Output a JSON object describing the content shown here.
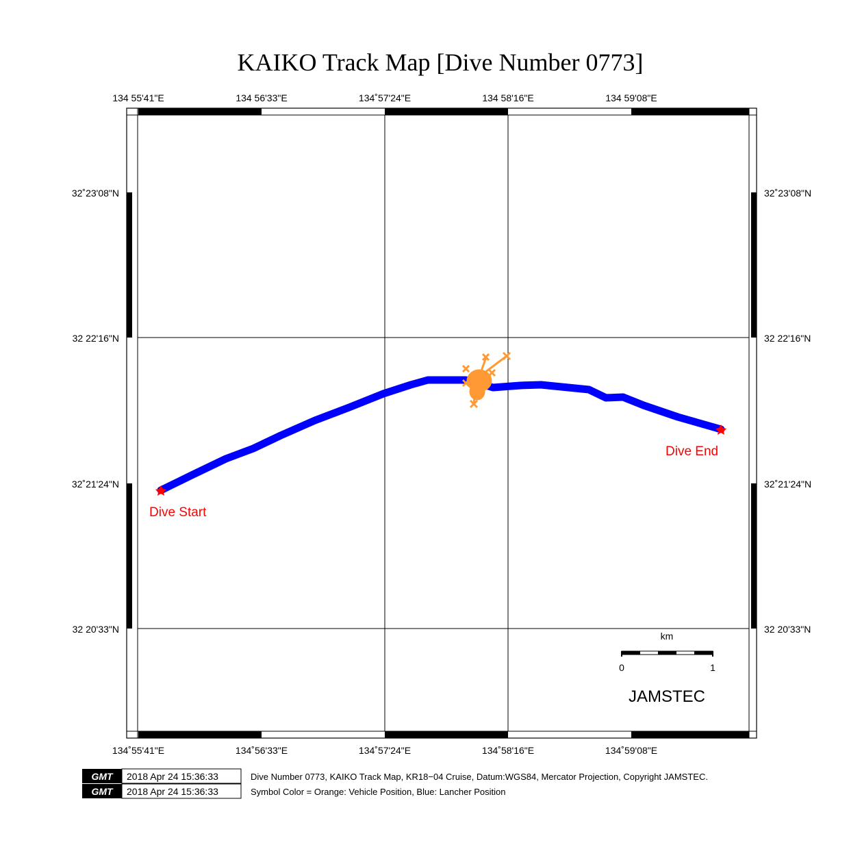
{
  "title": "KAIKO Track Map [Dive Number 0773]",
  "lon_ticks_top": [
    "134 55'41\"E",
    "134 56'33\"E",
    "134˚57'24\"E",
    "134 58'16\"E",
    "134 59'08\"E"
  ],
  "lon_ticks_bottom": [
    "134˚55'41\"E",
    "134˚56'33\"E",
    "134˚57'24\"E",
    "134˚58'16\"E",
    "134˚59'08\"E"
  ],
  "lat_ticks_left": [
    "32˚23'08\"N",
    "32 22'16\"N",
    "32˚21'24\"N",
    "32 20'33\"N"
  ],
  "lat_ticks_right": [
    "32˚23'08\"N",
    "32 22'16\"N",
    "32˚21'24\"N",
    "32 20'33\"N"
  ],
  "markers": {
    "start_label": "Dive Start",
    "end_label": "Dive End"
  },
  "scale_bar": {
    "unit": "km",
    "min_label": "0",
    "max_label": "1"
  },
  "brand": "JAMSTEC",
  "footer": {
    "logo_text": "GMT",
    "timestamp_1": "2018 Apr 24 15:36:33",
    "timestamp_2": "2018 Apr 24 15:36:33",
    "caption_1": "Dive Number 0773, KAIKO Track Map, KR18−04 Cruise, Datum:WGS84, Mercator Projection, Copyright JAMSTEC.",
    "caption_2": "Symbol Color = Orange: Vehicle Position, Blue: Lancher Position"
  },
  "colors": {
    "lancher_track": "#0000ff",
    "vehicle_position": "#ff9933",
    "marker": "#ff0000",
    "marker_label": "#ff0000"
  }
}
